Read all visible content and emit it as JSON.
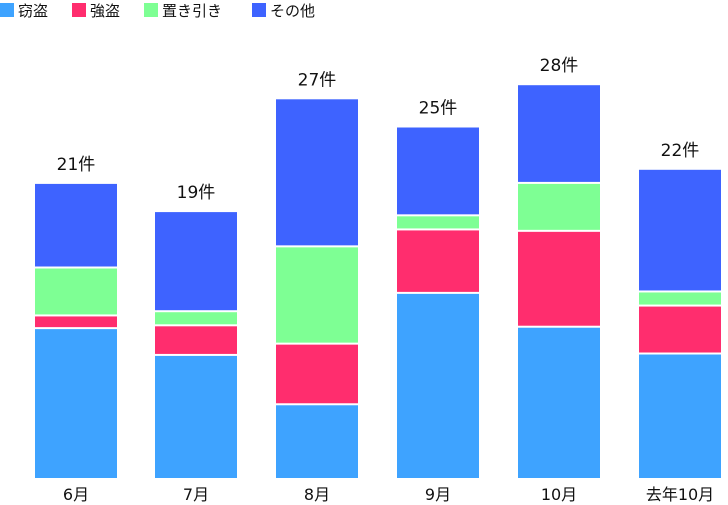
{
  "chart_data": {
    "type": "bar",
    "stacked": true,
    "title": "",
    "xlabel": "",
    "ylabel": "",
    "ylim": [
      0,
      30
    ],
    "grid": false,
    "legend_position": "top-left",
    "categories": [
      "6月",
      "7月",
      "8月",
      "9月",
      "10月",
      "去年10月"
    ],
    "series": [
      {
        "name": "窃盗",
        "color": "#3EA3FF",
        "values": [
          10.7,
          8.8,
          5.3,
          13.2,
          10.8,
          8.9
        ]
      },
      {
        "name": "強盗",
        "color": "#FF2D6E",
        "values": [
          0.9,
          2.1,
          4.3,
          4.5,
          6.8,
          3.4
        ]
      },
      {
        "name": "置き引き",
        "color": "#7EFF94",
        "values": [
          3.4,
          1.0,
          6.9,
          1.0,
          3.4,
          1.0
        ]
      },
      {
        "name": "その他",
        "color": "#3E63FF",
        "values": [
          6.0,
          7.1,
          10.5,
          6.3,
          7.0,
          8.7
        ]
      }
    ],
    "totals": [
      "21件",
      "19件",
      "27件",
      "25件",
      "28件",
      "22件"
    ]
  }
}
